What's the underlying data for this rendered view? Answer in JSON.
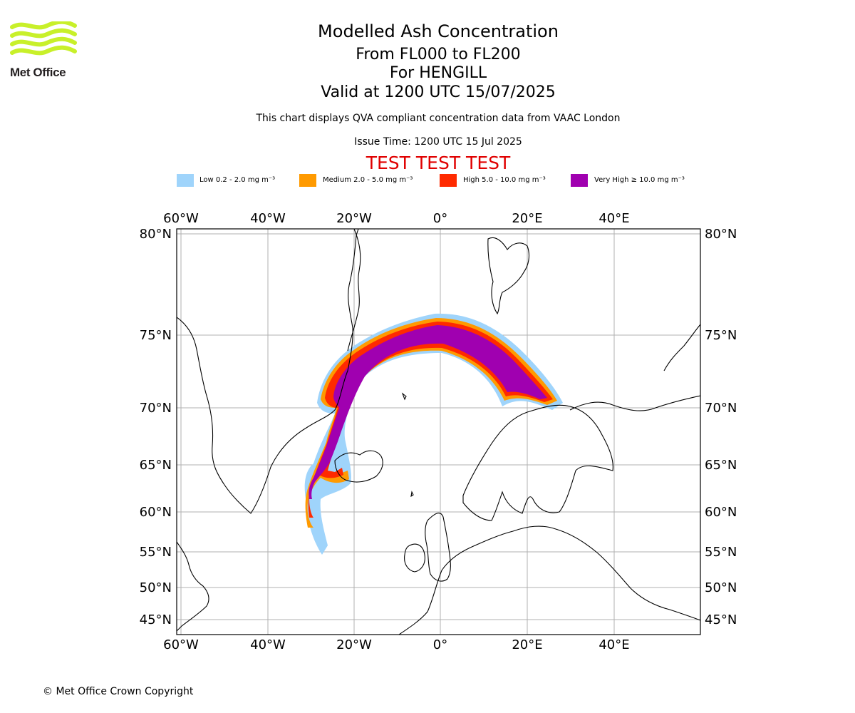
{
  "logo": {
    "text": "Met Office",
    "icon": "met-office-waves-icon",
    "color": "#c8f02a"
  },
  "header": {
    "title": "Modelled Ash Concentration",
    "flight_levels": "From FL000 to FL200",
    "volcano": "For HENGILL",
    "valid_time": "Valid at 1200 UTC 15/07/2025",
    "description": "This chart displays QVA compliant concentration data from VAAC London",
    "issue_time": "Issue Time: 1200 UTC 15 Jul 2025",
    "test_banner": "TEST TEST TEST"
  },
  "legend": [
    {
      "label": "Low 0.2 - 2.0 mg m⁻³",
      "color": "#9fd4fb"
    },
    {
      "label": "Medium 2.0 - 5.0 mg m⁻³",
      "color": "#ff9a00"
    },
    {
      "label": "High 5.0 - 10.0 mg m⁻³",
      "color": "#ff2a00"
    },
    {
      "label": "Very High  ≥  10.0 mg m⁻³",
      "color": "#a000b0"
    }
  ],
  "map": {
    "lon_labels": [
      "60°W",
      "40°W",
      "20°W",
      "0°",
      "20°E",
      "40°E"
    ],
    "lat_labels": [
      "80°N",
      "75°N",
      "70°N",
      "65°N",
      "60°N",
      "55°N",
      "50°N",
      "45°N"
    ],
    "gridlines": true
  },
  "footer": {
    "copyright": "© Met Office Crown Copyright"
  }
}
